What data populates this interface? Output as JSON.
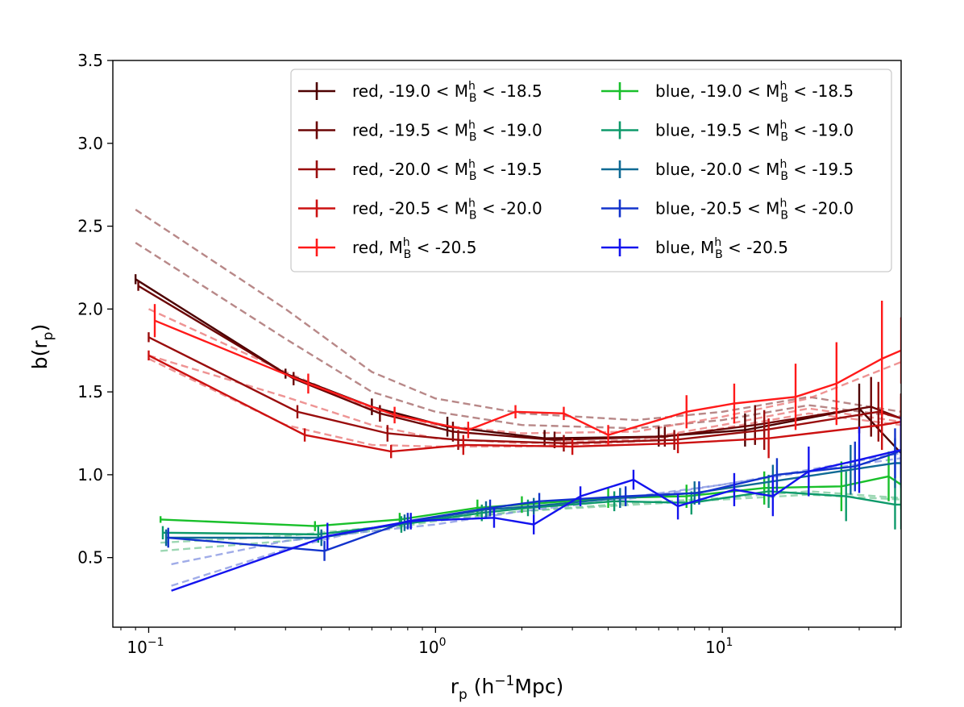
{
  "chart_data": {
    "type": "line",
    "xscale": "log",
    "xlim": [
      0.075,
      42
    ],
    "ylim": [
      0.08,
      3.5
    ],
    "xlabel": "r_p (h^-1 Mpc)",
    "ylabel": "b(r_p)",
    "xtick_base": "10",
    "xtick_exps": [
      "-1",
      "0",
      "1"
    ],
    "yticks": [
      "0.5",
      "1.0",
      "1.5",
      "2.0",
      "2.5",
      "3.0",
      "3.5"
    ],
    "legend_position": "top-right",
    "series": [
      {
        "name": "red, -19.0 < M_B^h < -18.5",
        "color": "#4d0000",
        "x": [
          0.09,
          0.3,
          0.6,
          1.1,
          2.4,
          6.0,
          12.0,
          30.0,
          42.0
        ],
        "y": [
          2.18,
          1.61,
          1.41,
          1.29,
          1.22,
          1.23,
          1.27,
          1.4,
          1.13
        ],
        "err": [
          0.03,
          0.03,
          0.05,
          0.06,
          0.05,
          0.06,
          0.1,
          0.15,
          0.15
        ]
      },
      {
        "name": "red, -19.5 < M_B^h < -19.0",
        "color": "#6b0505",
        "x": [
          0.092,
          0.32,
          0.64,
          1.15,
          2.6,
          6.3,
          13.0,
          33.0,
          42.0
        ],
        "y": [
          2.14,
          1.58,
          1.37,
          1.26,
          1.21,
          1.23,
          1.3,
          1.41,
          1.34
        ],
        "err": [
          0.03,
          0.04,
          0.05,
          0.06,
          0.05,
          0.06,
          0.12,
          0.18,
          0.15
        ]
      },
      {
        "name": "red, -20.0 < M_B^h < -19.5",
        "color": "#990d0d",
        "x": [
          0.1,
          0.33,
          0.68,
          1.2,
          2.8,
          6.8,
          14.0,
          35.0,
          42.0
        ],
        "y": [
          1.83,
          1.38,
          1.25,
          1.21,
          1.19,
          1.21,
          1.27,
          1.38,
          1.34
        ],
        "err": [
          0.03,
          0.04,
          0.05,
          0.06,
          0.05,
          0.06,
          0.12,
          0.18,
          0.15
        ]
      },
      {
        "name": "red, -20.5 < M_B^h < -20.0",
        "color": "#cc1111",
        "x": [
          0.1,
          0.35,
          0.7,
          1.25,
          3.0,
          7.0,
          14.5,
          36.0,
          42.0
        ],
        "y": [
          1.72,
          1.24,
          1.14,
          1.18,
          1.17,
          1.19,
          1.22,
          1.3,
          1.32
        ],
        "err": [
          0.03,
          0.04,
          0.04,
          0.06,
          0.05,
          0.06,
          0.12,
          0.15,
          0.15
        ]
      },
      {
        "name": "red, M_B^h < -20.5",
        "color": "#ff1a1a",
        "x": [
          0.105,
          0.36,
          0.72,
          1.3,
          1.9,
          2.8,
          4.0,
          7.5,
          11.0,
          18.0,
          25.0,
          36.0,
          42.0
        ],
        "y": [
          1.93,
          1.55,
          1.36,
          1.27,
          1.38,
          1.37,
          1.24,
          1.38,
          1.43,
          1.47,
          1.55,
          1.7,
          1.75
        ],
        "err": [
          0.1,
          0.06,
          0.05,
          0.05,
          0.04,
          0.04,
          0.06,
          0.1,
          0.12,
          0.2,
          0.25,
          0.35,
          0.2
        ]
      },
      {
        "name": "blue, -19.0 < M_B^h < -18.5",
        "color": "#19c02b",
        "x": [
          0.11,
          0.38,
          0.75,
          1.4,
          2.0,
          4.0,
          7.5,
          14.0,
          26.0,
          38.0,
          42.0
        ],
        "y": [
          0.73,
          0.69,
          0.73,
          0.8,
          0.82,
          0.86,
          0.87,
          0.92,
          0.93,
          0.99,
          0.94
        ],
        "err": [
          0.02,
          0.03,
          0.04,
          0.05,
          0.05,
          0.06,
          0.07,
          0.1,
          0.15,
          0.15,
          0.15
        ]
      },
      {
        "name": "blue, -19.5 < M_B^h < -19.0",
        "color": "#0e9a6b",
        "x": [
          0.112,
          0.39,
          0.76,
          1.45,
          2.1,
          4.2,
          7.8,
          14.5,
          27.0,
          40.0,
          42.0
        ],
        "y": [
          0.65,
          0.64,
          0.7,
          0.77,
          0.8,
          0.84,
          0.83,
          0.9,
          0.87,
          0.82,
          0.82
        ],
        "err": [
          0.04,
          0.05,
          0.05,
          0.05,
          0.05,
          0.06,
          0.07,
          0.1,
          0.15,
          0.15,
          0.15
        ]
      },
      {
        "name": "blue, -20.0 < M_B^h < -19.5",
        "color": "#0f6a94",
        "x": [
          0.115,
          0.4,
          0.78,
          1.5,
          2.2,
          4.4,
          8.0,
          15.0,
          28.0,
          40.0,
          42.0
        ],
        "y": [
          0.62,
          0.62,
          0.71,
          0.79,
          0.81,
          0.86,
          0.89,
          0.96,
          1.03,
          1.07,
          1.07
        ],
        "err": [
          0.05,
          0.05,
          0.05,
          0.05,
          0.05,
          0.06,
          0.07,
          0.1,
          0.15,
          0.15,
          0.15
        ]
      },
      {
        "name": "blue, -20.5 < M_B^h < -20.0",
        "color": "#1233cc",
        "x": [
          0.117,
          0.41,
          0.8,
          1.55,
          2.3,
          4.6,
          8.3,
          15.5,
          29.0,
          40.0,
          42.0
        ],
        "y": [
          0.62,
          0.54,
          0.72,
          0.8,
          0.84,
          0.87,
          0.89,
          1.0,
          1.05,
          1.13,
          1.15
        ],
        "err": [
          0.06,
          0.06,
          0.05,
          0.05,
          0.05,
          0.06,
          0.07,
          0.1,
          0.15,
          0.15,
          0.15
        ]
      },
      {
        "name": "blue, M_B^h < -20.5",
        "color": "#1414ee",
        "x": [
          0.12,
          0.42,
          0.82,
          1.6,
          2.2,
          3.2,
          4.9,
          7.0,
          11.0,
          15.0,
          20.0,
          30.0,
          42.0
        ],
        "y": [
          0.3,
          0.63,
          0.72,
          0.74,
          0.7,
          0.87,
          0.97,
          0.81,
          0.91,
          0.87,
          1.02,
          1.09,
          1.15
        ],
        "err": [
          0.0,
          0.08,
          0.05,
          0.06,
          0.06,
          0.06,
          0.06,
          0.08,
          0.1,
          0.12,
          0.15,
          0.2,
          0.2
        ]
      }
    ],
    "model_curves": [
      {
        "color": "#a06060",
        "x": [
          0.09,
          0.3,
          0.6,
          1.0,
          2.0,
          5.0,
          10.0,
          20.0,
          42.0
        ],
        "y": [
          2.6,
          2.0,
          1.62,
          1.46,
          1.37,
          1.33,
          1.38,
          1.47,
          1.38
        ]
      },
      {
        "color": "#a06060",
        "x": [
          0.09,
          0.3,
          0.6,
          1.0,
          2.0,
          5.0,
          10.0,
          20.0,
          42.0
        ],
        "y": [
          2.4,
          1.82,
          1.5,
          1.38,
          1.3,
          1.28,
          1.33,
          1.42,
          1.35
        ]
      },
      {
        "color": "#e87070",
        "x": [
          0.1,
          0.3,
          0.6,
          1.0,
          2.0,
          5.0,
          10.0,
          20.0,
          42.0
        ],
        "y": [
          2.0,
          1.62,
          1.4,
          1.3,
          1.25,
          1.26,
          1.35,
          1.46,
          1.68
        ]
      },
      {
        "color": "#e87070",
        "x": [
          0.1,
          0.3,
          0.6,
          1.0,
          2.0,
          5.0,
          10.0,
          20.0,
          42.0
        ],
        "y": [
          1.72,
          1.47,
          1.3,
          1.22,
          1.19,
          1.21,
          1.3,
          1.4,
          1.32
        ]
      },
      {
        "color": "#e87070",
        "x": [
          0.1,
          0.3,
          0.6,
          1.0,
          2.0,
          5.0,
          10.0,
          20.0,
          42.0
        ],
        "y": [
          1.7,
          1.3,
          1.18,
          1.17,
          1.17,
          1.2,
          1.28,
          1.37,
          1.3
        ]
      },
      {
        "color": "#7bc99a",
        "x": [
          0.11,
          0.3,
          0.6,
          1.0,
          2.0,
          5.0,
          10.0,
          20.0,
          42.0
        ],
        "y": [
          0.54,
          0.6,
          0.66,
          0.72,
          0.78,
          0.83,
          0.86,
          0.9,
          0.86
        ]
      },
      {
        "color": "#7bc99a",
        "x": [
          0.11,
          0.3,
          0.6,
          1.0,
          2.0,
          5.0,
          10.0,
          20.0,
          42.0
        ],
        "y": [
          0.59,
          0.63,
          0.68,
          0.73,
          0.78,
          0.82,
          0.85,
          0.88,
          0.85
        ]
      },
      {
        "color": "#8090e0",
        "x": [
          0.12,
          0.3,
          0.6,
          1.0,
          2.0,
          5.0,
          10.0,
          20.0,
          42.0
        ],
        "y": [
          0.33,
          0.55,
          0.68,
          0.74,
          0.8,
          0.87,
          0.94,
          1.03,
          1.13
        ]
      },
      {
        "color": "#8090e0",
        "x": [
          0.12,
          0.3,
          0.6,
          1.0,
          2.0,
          5.0,
          10.0,
          20.0,
          42.0
        ],
        "y": [
          0.46,
          0.6,
          0.66,
          0.7,
          0.78,
          0.86,
          0.94,
          1.02,
          1.1
        ]
      }
    ]
  }
}
